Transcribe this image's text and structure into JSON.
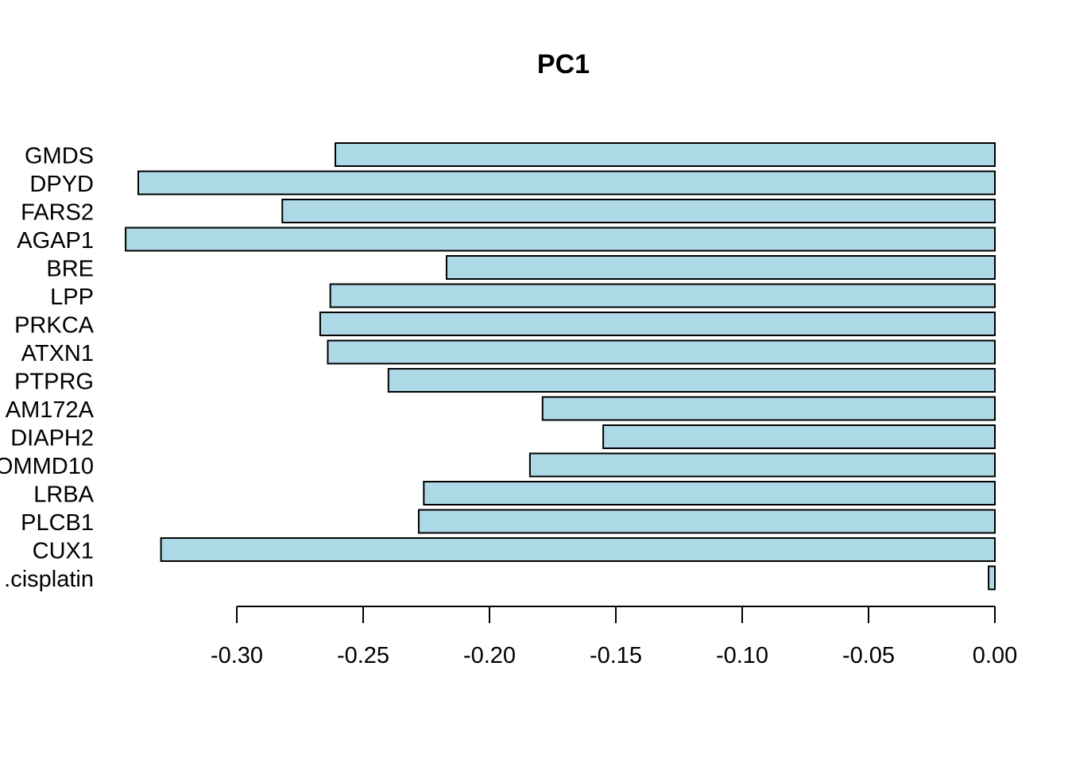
{
  "chart_data": {
    "type": "bar",
    "orientation": "horizontal",
    "title": "PC1",
    "xlabel": "",
    "ylabel": "",
    "categories": [
      "GMDS",
      "DPYD",
      "FARS2",
      "AGAP1",
      "BRE",
      "LPP",
      "PRKCA",
      "ATXN1",
      "PTPRG",
      "AM172A",
      "DIAPH2",
      "OMMD10",
      "LRBA",
      "PLCB1",
      "CUX1",
      ".cisplatin"
    ],
    "values": [
      -0.261,
      -0.339,
      -0.282,
      -0.344,
      -0.217,
      -0.263,
      -0.267,
      -0.264,
      -0.24,
      -0.179,
      -0.155,
      -0.184,
      -0.226,
      -0.228,
      -0.33,
      -0.0025
    ],
    "xlim": [
      -0.344,
      0.0
    ],
    "xticks": [
      -0.3,
      -0.25,
      -0.2,
      -0.15,
      -0.1,
      -0.05,
      0.0
    ],
    "xtick_labels": [
      "-0.30",
      "-0.25",
      "-0.20",
      "-0.15",
      "-0.10",
      "-0.05",
      "0.00"
    ],
    "bar_color": "#add8e6",
    "bar_border_color": "#000000",
    "grid": false,
    "legend": "none"
  }
}
